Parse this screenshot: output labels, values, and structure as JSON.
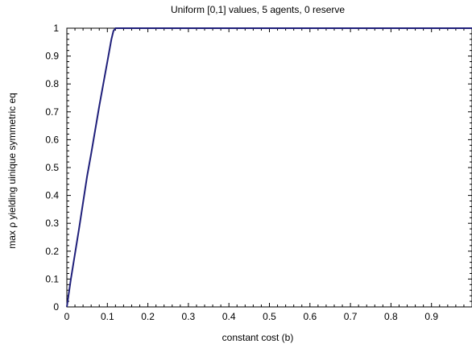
{
  "chart_data": {
    "type": "line",
    "title": "Uniform [0,1] values, 5 agents, 0 reserve",
    "xlabel": "constant cost (b)",
    "ylabel": "max ρ yielding uinique symmetric eq",
    "xlim": [
      0,
      1
    ],
    "ylim": [
      0,
      1
    ],
    "x_ticks": [
      "0",
      "0.1",
      "0.2",
      "0.3",
      "0.4",
      "0.5",
      "0.6",
      "0.7",
      "0.8",
      "0.9"
    ],
    "y_ticks": [
      "0",
      "0.1",
      "0.2",
      "0.3",
      "0.4",
      "0.5",
      "0.6",
      "0.7",
      "0.8",
      "0.9",
      "1"
    ],
    "grid": false,
    "line_color": "#1f1f7a",
    "series": [
      {
        "x": [
          0,
          0.01,
          0.03,
          0.05,
          0.06,
          0.08,
          0.1,
          0.11,
          0.115,
          0.12,
          0.13,
          0.2,
          0.4,
          0.6,
          0.8,
          1.0
        ],
        "y": [
          0,
          0.1,
          0.28,
          0.47,
          0.55,
          0.72,
          0.88,
          0.96,
          0.99,
          1.0,
          1.0,
          1.0,
          1.0,
          1.0,
          1.0,
          1.0
        ]
      }
    ]
  }
}
